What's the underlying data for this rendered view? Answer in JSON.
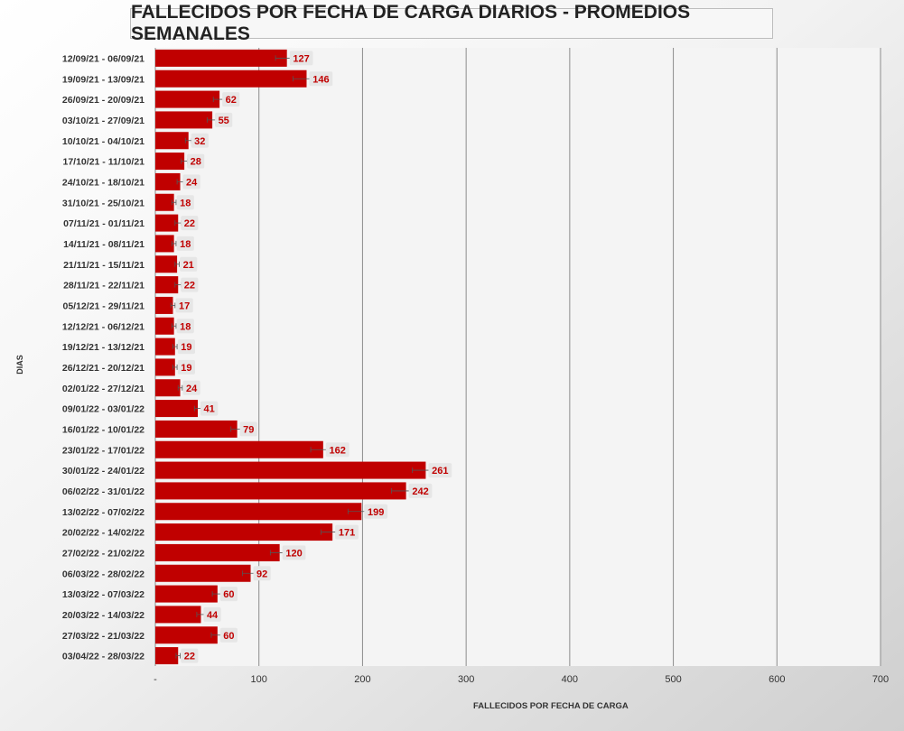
{
  "chart_data": {
    "type": "bar",
    "orientation": "horizontal",
    "title": "FALLECIDOS POR FECHA DE CARGA DIARIOS - PROMEDIOS SEMANALES",
    "xlabel": "FALLECIDOS POR FECHA DE CARGA",
    "ylabel": "DIAS",
    "xlim": [
      0,
      700
    ],
    "xticks": [
      0,
      100,
      200,
      300,
      400,
      500,
      600,
      700
    ],
    "xtick_labels": [
      "-",
      "100",
      "200",
      "300",
      "400",
      "500",
      "600",
      "700"
    ],
    "grid": true,
    "bar_color": "#c00000",
    "label_color": "#c00000",
    "label_bg": "#e6e6e6",
    "categories": [
      "12/09/21 - 06/09/21",
      "19/09/21 - 13/09/21",
      "26/09/21 - 20/09/21",
      "03/10/21 - 27/09/21",
      "10/10/21 - 04/10/21",
      "17/10/21 - 11/10/21",
      "24/10/21 - 18/10/21",
      "31/10/21 - 25/10/21",
      "07/11/21 - 01/11/21",
      "14/11/21 - 08/11/21",
      "21/11/21 - 15/11/21",
      "28/11/21 - 22/11/21",
      "05/12/21 - 29/11/21",
      "12/12/21 - 06/12/21",
      "19/12/21 - 13/12/21",
      "26/12/21 - 20/12/21",
      "02/01/22 - 27/12/21",
      "09/01/22 - 03/01/22",
      "16/01/22 - 10/01/22",
      "23/01/22 - 17/01/22",
      "30/01/22 - 24/01/22",
      "06/02/22 - 31/01/22",
      "13/02/22 - 07/02/22",
      "20/02/22 - 14/02/22",
      "27/02/22 - 21/02/22",
      "06/03/22 - 28/02/22",
      "13/03/22 - 07/03/22",
      "20/03/22 - 14/03/22",
      "27/03/22 - 21/03/22",
      "03/04/22 - 28/03/22"
    ],
    "values": [
      127,
      146,
      62,
      55,
      32,
      28,
      24,
      18,
      22,
      18,
      21,
      22,
      17,
      18,
      19,
      19,
      24,
      41,
      79,
      162,
      261,
      242,
      199,
      171,
      120,
      92,
      60,
      44,
      60,
      22
    ],
    "errors": [
      11,
      13,
      6,
      5,
      3,
      3,
      3,
      2,
      3,
      2,
      2,
      3,
      2,
      2,
      2,
      2,
      2,
      3,
      6,
      12,
      13,
      14,
      13,
      11,
      9,
      8,
      5,
      4,
      6,
      2
    ]
  }
}
